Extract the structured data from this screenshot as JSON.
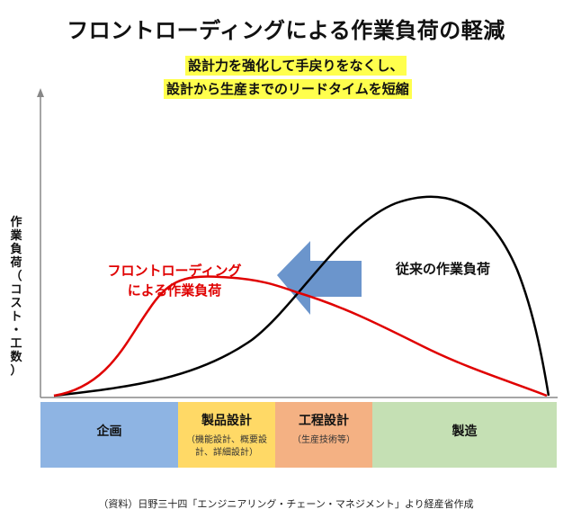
{
  "title": "フロントローディングによる作業負荷の軽減",
  "subtitle": {
    "line1": "設計力を強化して手戻りをなくし、",
    "line2": "設計から生産までのリードタイムを短縮"
  },
  "y_axis_label": [
    "作",
    "業",
    "負",
    "荷",
    "（",
    "コ",
    "ス",
    "ト",
    "・",
    "工",
    "数",
    "）"
  ],
  "curves": {
    "front_loading_label": [
      "フロントローディング",
      "による作業負荷"
    ],
    "conventional_label": "従来の作業負荷",
    "front_loading_color": "#e00000",
    "conventional_color": "#000000",
    "arrow_color": "#5b8ac6"
  },
  "phases": [
    {
      "name": "企画",
      "detail": []
    },
    {
      "name": "製品設計",
      "detail": [
        "（機能設計、概要設",
        "計、詳細設計）"
      ]
    },
    {
      "name": "工程設計",
      "detail": [
        "（生産技術等）"
      ]
    },
    {
      "name": "製造",
      "detail": []
    }
  ],
  "phase_colors": [
    "#8eb4e3",
    "#ffd966",
    "#f4b183",
    "#c5e0b4"
  ],
  "source": "（資料）日野三十四「エンジニアリング・チェーン・マネジメント」より経産省作成"
}
